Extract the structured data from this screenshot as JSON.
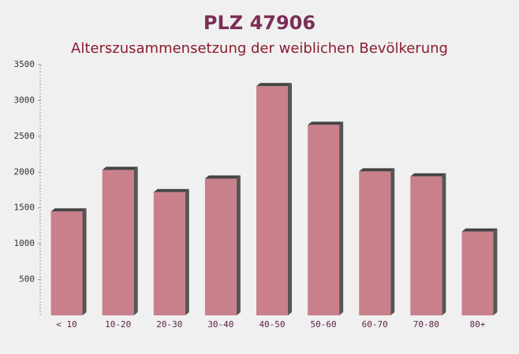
{
  "chart_data": {
    "type": "bar",
    "title": "PLZ 47906",
    "subtitle": "Alterszusammensetzung der weiblichen Bevölkerung",
    "categories": [
      "< 10",
      "10-20",
      "20-30",
      "30-40",
      "40-50",
      "50-60",
      "60-70",
      "70-80",
      "80+"
    ],
    "values": [
      1450,
      2030,
      1720,
      1910,
      3200,
      2660,
      2010,
      1940,
      1170
    ],
    "color": "#c4737e",
    "ylim": [
      0,
      3500
    ],
    "yticks": [
      500,
      1000,
      1500,
      2000,
      2500,
      3000,
      3500
    ]
  }
}
